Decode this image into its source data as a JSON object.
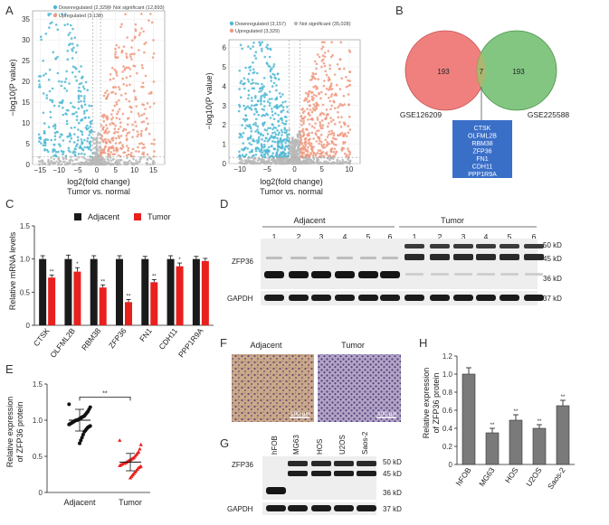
{
  "panel_labels": {
    "a": "A",
    "b": "B",
    "c": "C",
    "d": "D",
    "e": "E",
    "f": "F",
    "g": "G",
    "h": "H"
  },
  "volcano": [
    {
      "legend_down": "Downregulated (2,329)",
      "legend_ns": "Not significant (12,893)",
      "legend_up": "Upregulated (3,138)",
      "y_ticks": [
        "0",
        "5",
        "10",
        "15",
        "20",
        "25",
        "30",
        "35"
      ],
      "x_ticks": [
        "−15",
        "−10",
        "−5",
        "0",
        "5",
        "10",
        "15"
      ],
      "xlabel": "log2(fold change)",
      "ylabel": "−log10(P value)",
      "subtitle": "Tumor vs. normal"
    },
    {
      "legend_down": "Downregulated (3,157)",
      "legend_ns": "Not significant (35,028)",
      "legend_up": "Upregulated (3,329)",
      "y_ticks": [
        "0",
        "1",
        "2",
        "3",
        "4",
        "5",
        "6"
      ],
      "x_ticks": [
        "−10",
        "−5",
        "0",
        "5",
        "10"
      ],
      "xlabel": "log2(fold change)",
      "ylabel": "−log10(P value)",
      "subtitle": "Tumor vs. normal"
    }
  ],
  "venn": {
    "left_name": "GSE126209",
    "right_name": "GSE225588",
    "left_only": "193",
    "overlap": "7",
    "right_only": "193",
    "genes": [
      "CTSK",
      "OLFML2B",
      "RBM38",
      "ZFP36",
      "FN1",
      "CDH11",
      "PPP1R9A"
    ]
  },
  "colors": {
    "down": "#4fb8d4",
    "up": "#ef9a80",
    "ns": "#b8b8b8",
    "venn_left": "#f07a78",
    "venn_right": "#7cc47c",
    "gene_box": "#3a6fc8",
    "adjacent_bar": "#1a1a1a",
    "tumor_bar": "#e8201e",
    "h_bar": "#7a7a7a"
  },
  "chart_data": [
    {
      "type": "bar",
      "title": "",
      "legend": [
        "Adjacent",
        "Tumor"
      ],
      "ylabel": "Relative mRNA levels",
      "ylim": [
        0,
        1.5
      ],
      "y_ticks": [
        "0",
        "0.5",
        "1.0",
        "1.5"
      ],
      "categories": [
        "CTSK",
        "OLFML2B",
        "RBM38",
        "ZFP36",
        "FN1",
        "CDH11",
        "PPP1R9A"
      ],
      "series": [
        {
          "name": "Adjacent",
          "values": [
            1.0,
            1.0,
            1.0,
            1.0,
            1.0,
            1.0,
            1.0
          ],
          "errors": [
            0.05,
            0.06,
            0.05,
            0.05,
            0.04,
            0.05,
            0.04
          ]
        },
        {
          "name": "Tumor",
          "values": [
            0.72,
            0.81,
            0.57,
            0.35,
            0.65,
            0.89,
            0.97
          ],
          "errors": [
            0.04,
            0.06,
            0.04,
            0.04,
            0.04,
            0.05,
            0.04
          ],
          "sig": [
            "**",
            "*",
            "**",
            "**",
            "**",
            "*",
            ""
          ]
        }
      ]
    },
    {
      "type": "scatter",
      "ylabel": "Relative expression of ZFP36 protein",
      "ylim": [
        0,
        1.5
      ],
      "y_ticks": [
        "0",
        "0.5",
        "1.0",
        "1.5"
      ],
      "categories": [
        "Adjacent",
        "Tumor"
      ],
      "means": [
        1.0,
        0.42
      ],
      "sd": [
        0.15,
        0.12
      ],
      "sig": "**",
      "series": [
        {
          "name": "Adjacent",
          "values": [
            1.22,
            1.18,
            1.15,
            1.12,
            1.1,
            1.08,
            1.06,
            1.05,
            1.04,
            1.03,
            1.02,
            1.01,
            1.0,
            1.0,
            0.99,
            0.98,
            0.97,
            0.96,
            0.95,
            0.94,
            0.92,
            0.91,
            0.9,
            0.88,
            0.86,
            0.84,
            0.8,
            0.76,
            0.72,
            0.68
          ]
        },
        {
          "name": "Tumor",
          "values": [
            0.72,
            0.66,
            0.6,
            0.56,
            0.54,
            0.52,
            0.5,
            0.48,
            0.47,
            0.46,
            0.45,
            0.44,
            0.43,
            0.42,
            0.41,
            0.4,
            0.4,
            0.39,
            0.38,
            0.37,
            0.36,
            0.35,
            0.34,
            0.32,
            0.3,
            0.28,
            0.26,
            0.24,
            0.22,
            0.2
          ]
        }
      ]
    },
    {
      "type": "bar",
      "ylabel": "Relative expression of ZFP36 protein",
      "ylim": [
        0,
        1.2
      ],
      "y_ticks": [
        "0",
        "0.2",
        "0.4",
        "0.6",
        "0.8",
        "1.0",
        "1.2"
      ],
      "categories": [
        "hFOB",
        "MG63",
        "HOS",
        "U2OS",
        "Saos-2"
      ],
      "values": [
        1.0,
        0.35,
        0.49,
        0.4,
        0.65
      ],
      "errors": [
        0.07,
        0.05,
        0.06,
        0.04,
        0.06
      ],
      "sig": [
        "",
        "**",
        "**",
        "**",
        "**"
      ]
    }
  ],
  "blot_d": {
    "group_left": "Adjacent",
    "group_right": "Tumor",
    "lanes": [
      "1",
      "2",
      "3",
      "4",
      "5",
      "6",
      "1",
      "2",
      "3",
      "4",
      "5",
      "6"
    ],
    "protein": "ZFP36",
    "loading": "GAPDH",
    "mw": [
      "50 kD",
      "45 kD",
      "36 kD",
      "37 kD"
    ]
  },
  "ihc": {
    "left_title": "Adjacent",
    "right_title": "Tumor",
    "scale": "100 μm"
  },
  "blot_g": {
    "lanes": [
      "hFOB",
      "MG63",
      "HOS",
      "U2OS",
      "Saos-2"
    ],
    "protein": "ZFP36",
    "loading": "GAPDH",
    "mw": [
      "50 kD",
      "45 kD",
      "36 kD",
      "37 kD"
    ]
  }
}
